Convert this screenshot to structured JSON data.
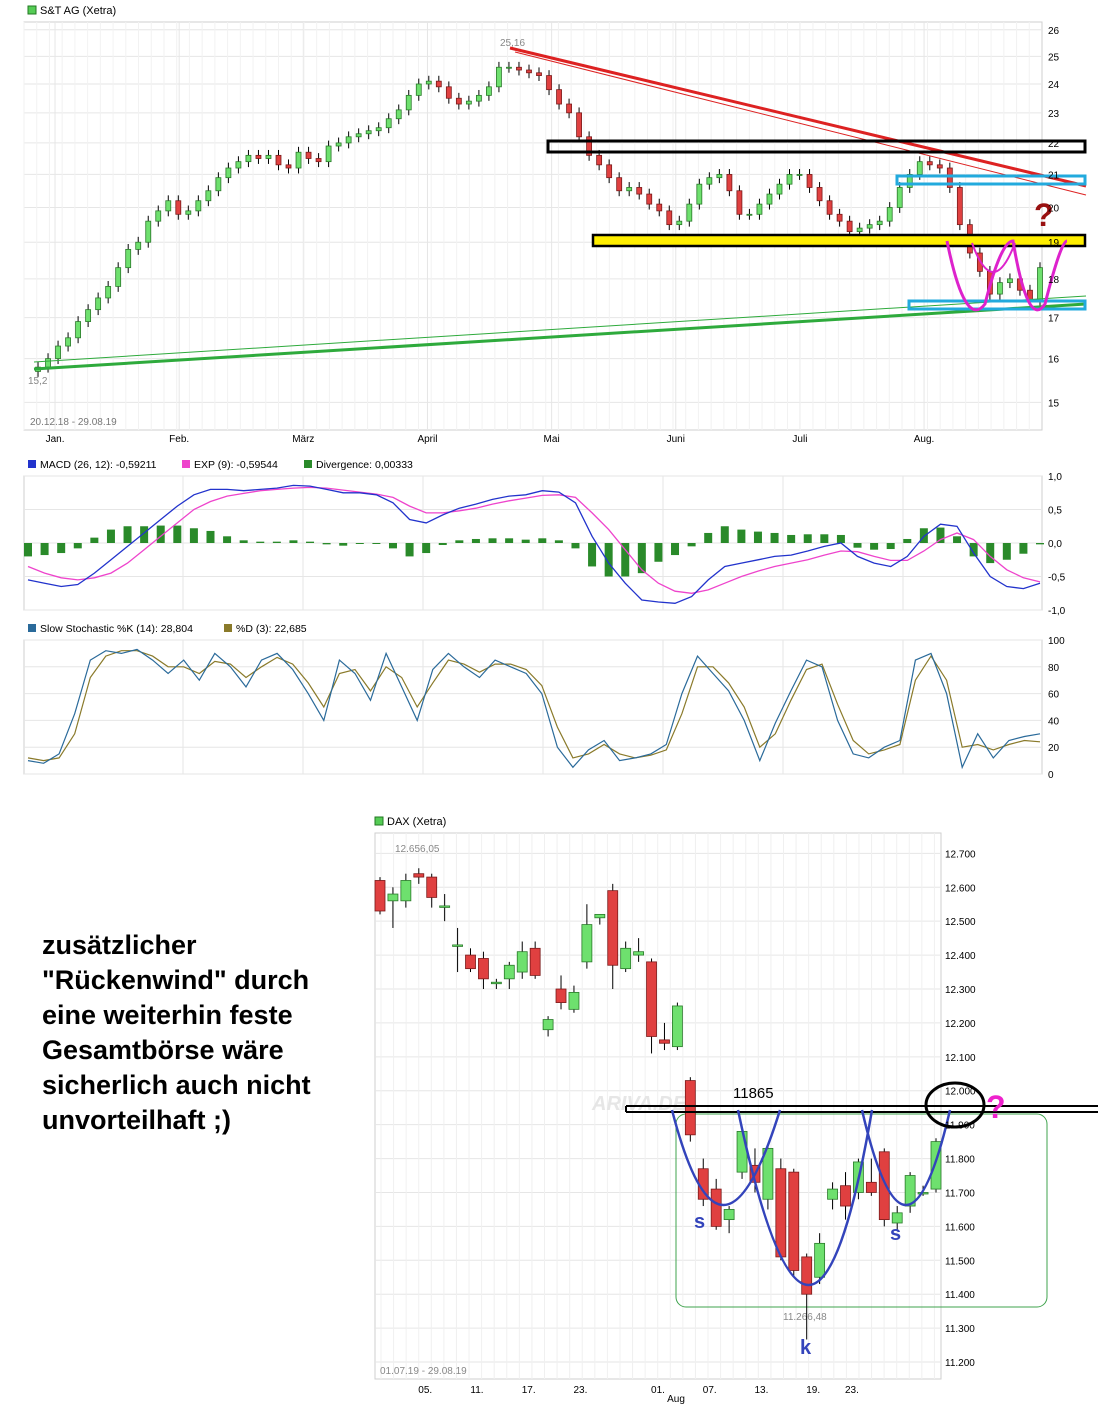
{
  "chart_data": [
    {
      "type": "candlestick",
      "title": "S&T AG (Xetra)",
      "date_range": "20.12.18 - 29.08.19",
      "x_tick_labels": [
        "Jan.",
        "Feb.",
        "März",
        "April",
        "Mai",
        "Juni",
        "Juli",
        "Aug."
      ],
      "y_tick_labels": [
        "15",
        "16",
        "17",
        "18",
        "19",
        "20",
        "21",
        "22",
        "23",
        "24",
        "25",
        "26"
      ],
      "ylim": [
        14.4,
        26.3
      ],
      "y_scale": "log",
      "grid": true,
      "annotations": {
        "high": "25,16",
        "low": "15,2",
        "question_mark": "?"
      },
      "close_series": [
        15.7,
        15.8,
        16.0,
        16.3,
        16.5,
        16.9,
        17.2,
        17.5,
        17.8,
        18.3,
        18.8,
        19.0,
        19.6,
        19.9,
        20.2,
        19.8,
        19.9,
        20.2,
        20.5,
        20.9,
        21.2,
        21.4,
        21.6,
        21.5,
        21.6,
        21.3,
        21.2,
        21.7,
        21.5,
        21.4,
        21.9,
        22.0,
        22.2,
        22.3,
        22.4,
        22.5,
        22.8,
        23.1,
        23.6,
        24.0,
        24.1,
        23.9,
        23.5,
        23.3,
        23.4,
        23.6,
        23.9,
        24.6,
        24.6,
        24.5,
        24.4,
        24.3,
        23.8,
        23.3,
        23.0,
        22.2,
        21.6,
        21.3,
        20.9,
        20.5,
        20.6,
        20.4,
        20.1,
        19.9,
        19.5,
        19.6,
        20.1,
        20.7,
        20.9,
        21.0,
        20.5,
        19.8,
        19.8,
        20.1,
        20.4,
        20.7,
        21.0,
        21.0,
        20.6,
        20.2,
        19.8,
        19.6,
        19.3,
        19.4,
        19.5,
        19.6,
        20.0,
        20.6,
        21.0,
        21.4,
        21.3,
        21.2,
        20.6,
        19.5,
        18.7,
        18.2,
        17.6,
        17.9,
        18.0,
        17.7,
        17.4,
        18.3
      ]
    },
    {
      "type": "line",
      "title": "MACD",
      "series": [
        {
          "name": "MACD (26, 12): -0,59211",
          "color": "#2233cc",
          "values": [
            -0.55,
            -0.6,
            -0.65,
            -0.62,
            -0.45,
            -0.25,
            -0.05,
            0.15,
            0.35,
            0.55,
            0.72,
            0.8,
            0.8,
            0.78,
            0.8,
            0.82,
            0.86,
            0.85,
            0.8,
            0.75,
            0.75,
            0.72,
            0.6,
            0.35,
            0.3,
            0.42,
            0.52,
            0.58,
            0.65,
            0.7,
            0.72,
            0.78,
            0.76,
            0.6,
            0.1,
            -0.3,
            -0.6,
            -0.85,
            -0.88,
            -0.9,
            -0.8,
            -0.55,
            -0.35,
            -0.3,
            -0.25,
            -0.2,
            -0.18,
            -0.12,
            -0.05,
            0.0,
            -0.2,
            -0.3,
            -0.35,
            -0.2,
            0.1,
            0.28,
            0.25,
            -0.15,
            -0.5,
            -0.65,
            -0.68,
            -0.6
          ]
        },
        {
          "name": "EXP (9): -0,59544",
          "color": "#ee44cc",
          "values": [
            -0.35,
            -0.45,
            -0.52,
            -0.55,
            -0.52,
            -0.45,
            -0.3,
            -0.1,
            0.1,
            0.3,
            0.5,
            0.62,
            0.7,
            0.74,
            0.78,
            0.8,
            0.82,
            0.83,
            0.82,
            0.79,
            0.76,
            0.73,
            0.68,
            0.55,
            0.45,
            0.45,
            0.48,
            0.52,
            0.58,
            0.63,
            0.67,
            0.71,
            0.72,
            0.68,
            0.45,
            0.2,
            -0.1,
            -0.4,
            -0.6,
            -0.72,
            -0.75,
            -0.7,
            -0.6,
            -0.5,
            -0.42,
            -0.35,
            -0.3,
            -0.25,
            -0.18,
            -0.12,
            -0.13,
            -0.2,
            -0.26,
            -0.26,
            -0.12,
            0.05,
            0.15,
            0.05,
            -0.2,
            -0.4,
            -0.52,
            -0.58
          ]
        },
        {
          "name": "Divergence: 0,00333",
          "color": "#2a8a2a",
          "bars": true,
          "values": [
            -0.2,
            -0.18,
            -0.15,
            -0.08,
            0.08,
            0.2,
            0.25,
            0.25,
            0.26,
            0.26,
            0.22,
            0.18,
            0.1,
            0.04,
            0.02,
            0.02,
            0.04,
            0.02,
            -0.02,
            -0.04,
            -0.01,
            -0.01,
            -0.08,
            -0.2,
            -0.15,
            -0.03,
            0.04,
            0.06,
            0.07,
            0.07,
            0.05,
            0.07,
            0.04,
            -0.08,
            -0.35,
            -0.5,
            -0.5,
            -0.45,
            -0.28,
            -0.18,
            -0.05,
            0.15,
            0.25,
            0.2,
            0.17,
            0.15,
            0.12,
            0.13,
            0.13,
            0.12,
            -0.07,
            -0.1,
            -0.09,
            0.06,
            0.22,
            0.23,
            0.1,
            -0.2,
            -0.3,
            -0.25,
            -0.16,
            -0.02
          ]
        }
      ],
      "y_tick_labels": [
        "1,0",
        "0,5",
        "0,0",
        "-0,5",
        "-1,0"
      ],
      "ylim": [
        -1.0,
        1.0
      ]
    },
    {
      "type": "line",
      "title": "Slow Stochastic",
      "series": [
        {
          "name": "Slow Stochastic %K (14): 28,804",
          "color": "#2a6a9a",
          "values": [
            10,
            8,
            15,
            45,
            85,
            92,
            90,
            93,
            85,
            75,
            85,
            70,
            90,
            80,
            65,
            85,
            90,
            78,
            60,
            40,
            85,
            75,
            55,
            90,
            65,
            40,
            78,
            90,
            80,
            72,
            85,
            80,
            75,
            60,
            20,
            5,
            18,
            25,
            10,
            12,
            15,
            22,
            60,
            88,
            75,
            62,
            40,
            10,
            38,
            62,
            85,
            80,
            40,
            15,
            12,
            20,
            25,
            85,
            90,
            60,
            5,
            30,
            12,
            25,
            28,
            30
          ]
        },
        {
          "name": "%D (3): 22,685",
          "color": "#8a7a2a",
          "values": [
            12,
            10,
            12,
            30,
            72,
            88,
            92,
            92,
            88,
            80,
            80,
            75,
            84,
            82,
            72,
            80,
            87,
            82,
            68,
            50,
            75,
            78,
            62,
            80,
            72,
            50,
            68,
            85,
            82,
            76,
            82,
            82,
            78,
            66,
            35,
            12,
            15,
            22,
            15,
            12,
            14,
            18,
            45,
            80,
            80,
            68,
            50,
            20,
            30,
            55,
            78,
            82,
            52,
            25,
            15,
            18,
            22,
            70,
            88,
            70,
            20,
            22,
            18,
            22,
            25,
            24
          ]
        }
      ],
      "y_tick_labels": [
        "100",
        "80",
        "60",
        "40",
        "20",
        "0"
      ],
      "ylim": [
        0,
        100
      ]
    },
    {
      "type": "candlestick",
      "title": "DAX (Xetra)",
      "date_range": "01.07.19 - 29.08.19",
      "x_tick_labels": [
        "05.",
        "11.",
        "17.",
        "23.",
        "01.",
        "07.",
        "13.",
        "19.",
        "23."
      ],
      "x_sub_label": "Aug",
      "y_tick_labels": [
        "12.700",
        "12.600",
        "12.500",
        "12.400",
        "12.300",
        "12.200",
        "12.100",
        "12.000",
        "11.900",
        "11.800",
        "11.700",
        "11.600",
        "11.500",
        "11.400",
        "11.300",
        "11.200"
      ],
      "ylim": [
        11150,
        12760
      ],
      "grid": true,
      "watermark": "ARIVA.DE",
      "resistance_label": "11865",
      "annotations": {
        "high": "12.656,05",
        "low": "11.266,48",
        "shoulder_left": "s",
        "head": "k",
        "shoulder_right": "s",
        "question_mark": "?"
      },
      "candles": [
        {
          "o": 12620,
          "h": 12630,
          "l": 12520,
          "c": 12530
        },
        {
          "o": 12560,
          "h": 12600,
          "l": 12480,
          "c": 12580
        },
        {
          "o": 12560,
          "h": 12640,
          "l": 12540,
          "c": 12620
        },
        {
          "o": 12640,
          "h": 12656.05,
          "l": 12610,
          "c": 12630
        },
        {
          "o": 12630,
          "h": 12640,
          "l": 12540,
          "c": 12570
        },
        {
          "o": 12545,
          "h": 12580,
          "l": 12500,
          "c": 12545
        },
        {
          "o": 12430,
          "h": 12480,
          "l": 12350,
          "c": 12430
        },
        {
          "o": 12400,
          "h": 12420,
          "l": 12350,
          "c": 12360
        },
        {
          "o": 12390,
          "h": 12410,
          "l": 12300,
          "c": 12330
        },
        {
          "o": 12320,
          "h": 12330,
          "l": 12300,
          "c": 12320
        },
        {
          "o": 12330,
          "h": 12380,
          "l": 12300,
          "c": 12370
        },
        {
          "o": 12350,
          "h": 12440,
          "l": 12330,
          "c": 12410
        },
        {
          "o": 12420,
          "h": 12440,
          "l": 12330,
          "c": 12340
        },
        {
          "o": 12180,
          "h": 12220,
          "l": 12160,
          "c": 12210
        },
        {
          "o": 12300,
          "h": 12340,
          "l": 12240,
          "c": 12260
        },
        {
          "o": 12240,
          "h": 12310,
          "l": 12230,
          "c": 12290
        },
        {
          "o": 12380,
          "h": 12550,
          "l": 12360,
          "c": 12490
        },
        {
          "o": 12510,
          "h": 12520,
          "l": 12490,
          "c": 12520
        },
        {
          "o": 12590,
          "h": 12610,
          "l": 12300,
          "c": 12370
        },
        {
          "o": 12360,
          "h": 12440,
          "l": 12350,
          "c": 12420
        },
        {
          "o": 12400,
          "h": 12450,
          "l": 12380,
          "c": 12410
        },
        {
          "o": 12380,
          "h": 12390,
          "l": 12110,
          "c": 12160
        },
        {
          "o": 12150,
          "h": 12200,
          "l": 12120,
          "c": 12140
        },
        {
          "o": 12130,
          "h": 12260,
          "l": 12120,
          "c": 12250
        },
        {
          "o": 12030,
          "h": 12040,
          "l": 11850,
          "c": 11870
        },
        {
          "o": 11770,
          "h": 11800,
          "l": 11660,
          "c": 11680
        },
        {
          "o": 11710,
          "h": 11740,
          "l": 11590,
          "c": 11600
        },
        {
          "o": 11620,
          "h": 11660,
          "l": 11580,
          "c": 11650
        },
        {
          "o": 11760,
          "h": 11890,
          "l": 11740,
          "c": 11880
        },
        {
          "o": 11780,
          "h": 11830,
          "l": 11700,
          "c": 11730
        },
        {
          "o": 11680,
          "h": 11840,
          "l": 11650,
          "c": 11830
        },
        {
          "o": 11770,
          "h": 11800,
          "l": 11500,
          "c": 11510
        },
        {
          "o": 11760,
          "h": 11770,
          "l": 11450,
          "c": 11470
        },
        {
          "o": 11510,
          "h": 11520,
          "l": 11266.48,
          "c": 11400
        },
        {
          "o": 11450,
          "h": 11580,
          "l": 11430,
          "c": 11550
        },
        {
          "o": 11680,
          "h": 11730,
          "l": 11650,
          "c": 11710
        },
        {
          "o": 11720,
          "h": 11760,
          "l": 11620,
          "c": 11660
        },
        {
          "o": 11700,
          "h": 11800,
          "l": 11680,
          "c": 11790
        },
        {
          "o": 11730,
          "h": 11800,
          "l": 11690,
          "c": 11700
        },
        {
          "o": 11820,
          "h": 11830,
          "l": 11600,
          "c": 11620
        },
        {
          "o": 11610,
          "h": 11660,
          "l": 11590,
          "c": 11640
        },
        {
          "o": 11660,
          "h": 11760,
          "l": 11640,
          "c": 11750
        },
        {
          "o": 11700,
          "h": 11720,
          "l": 11690,
          "c": 11700
        },
        {
          "o": 11710,
          "h": 11860,
          "l": 11700,
          "c": 11850
        }
      ]
    }
  ],
  "annotation_text": "zusätzlicher\n\"Rückenwind\" durch\neine weiterhin feste\nGesamtbörse wäre\nsicherlich auch nicht\nunvorteilhaft ;)"
}
